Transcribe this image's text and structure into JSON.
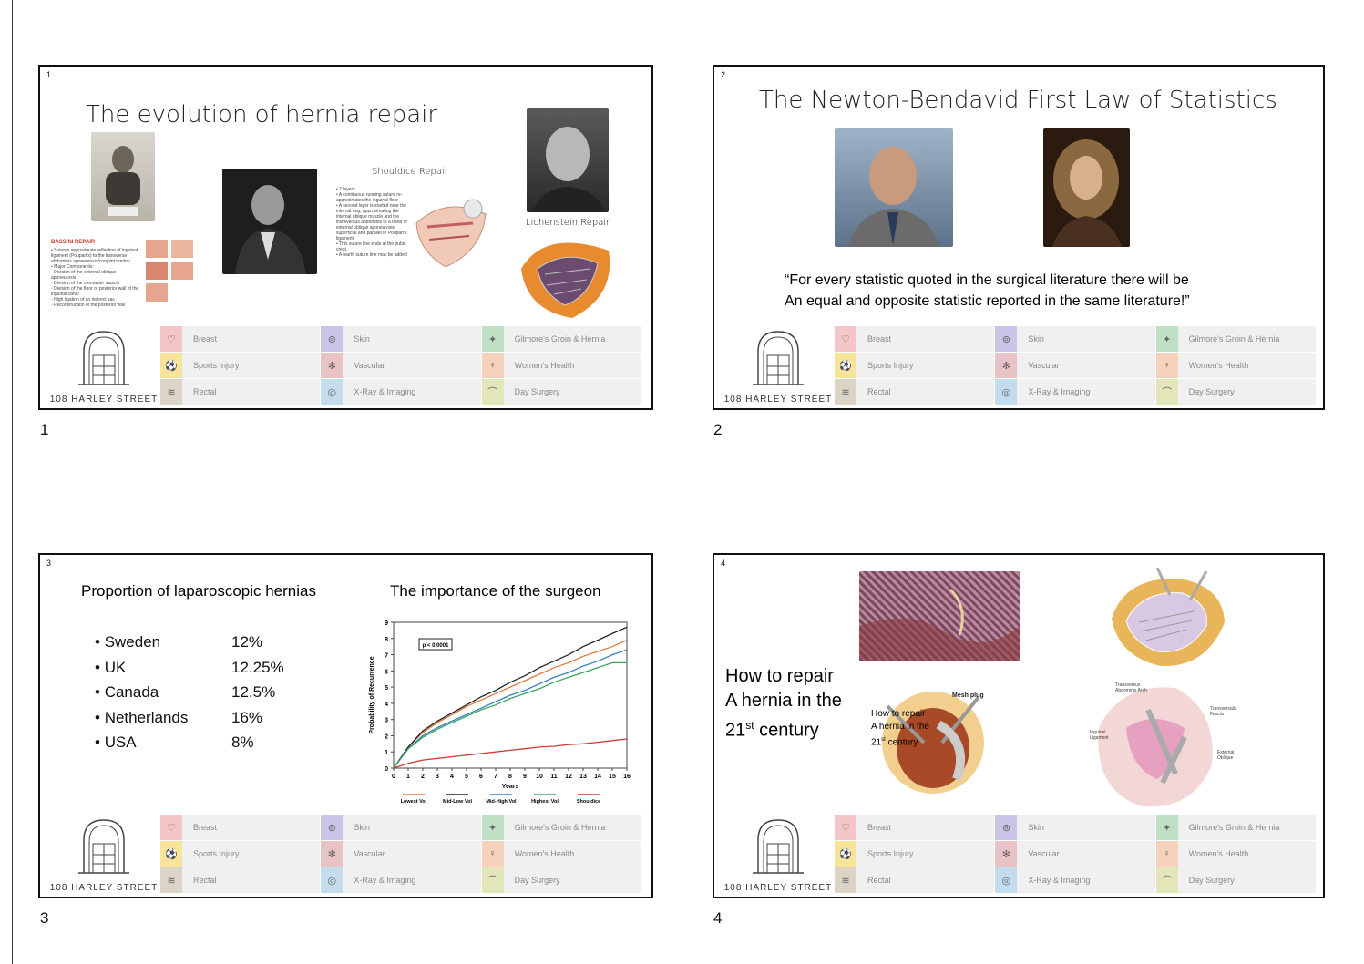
{
  "page_numbers": [
    "1",
    "2",
    "3",
    "4"
  ],
  "footer": {
    "logo_text": "108 HARLEY STREET",
    "cells": [
      {
        "label": "Breast",
        "icon": "ribbon-icon",
        "color": "#f4c6c8",
        "glyph": "♡"
      },
      {
        "label": "Skin",
        "icon": "skin-icon",
        "color": "#c9c5e6",
        "glyph": "⊚"
      },
      {
        "label": "Gilmore's Groin & Hernia",
        "icon": "hernia-icon",
        "color": "#bfe0c4",
        "glyph": "✦"
      },
      {
        "label": "Sports Injury",
        "icon": "sports-icon",
        "color": "#f8e39a",
        "glyph": "⚽"
      },
      {
        "label": "Vascular",
        "icon": "vascular-icon",
        "color": "#e8c3c6",
        "glyph": "✻"
      },
      {
        "label": "Women's Health",
        "icon": "women-icon",
        "color": "#f6d2bd",
        "glyph": "♀"
      },
      {
        "label": "Rectal",
        "icon": "rectal-icon",
        "color": "#dcd4c7",
        "glyph": "≋"
      },
      {
        "label": "X-Ray & Imaging",
        "icon": "xray-icon",
        "color": "#c3dcee",
        "glyph": "◎"
      },
      {
        "label": "Day Surgery",
        "icon": "surgery-icon",
        "color": "#e3e6b8",
        "glyph": "⌒"
      }
    ]
  },
  "slide1": {
    "number": "1",
    "title": "The evolution of hernia repair",
    "shouldice_title": "Shouldice Repair",
    "shouldice_bullets": "• 2 layers\n• A continuous running suture re-approximates the inguinal floor\n• A second layer is started near the internal ring, approximating the internal oblique muscle and the transversus abdominis to a band of external oblique aponeurosis superficial and parallel to Poupart's ligament\n• This suture line ends at the pubic crest.\n• A fourth suture line may be added",
    "lichenstein": "Lichenstein Repair",
    "bassini_title": "BASSINI REPAIR",
    "bassini_text": "• Sutures approximate reflection of inguinal ligament (Poupart's) to the transverse abdominis aponeurosis/conjoint tendon\n• Major Components:\n  ◦ Division of the external oblique aponeurosis\n  ◦ Division of the cremaster muscle\n  ◦ Division of the floor or posterior wall of the inguinal canal\n  ◦ High ligation of an indirect sac\n  ◦ Reconstruction of the posterior wall"
  },
  "slide2": {
    "number": "2",
    "title": "The Newton-Bendavid First Law of Statistics",
    "quote_line1": "“For every statistic quoted in the surgical literature there will be",
    "quote_line2": "An equal and opposite statistic reported in the same literature!”"
  },
  "slide3": {
    "number": "3",
    "left_title": "Proportion of laparoscopic hernias",
    "right_title": "The importance of the surgeon",
    "rows": [
      {
        "country": "Sweden",
        "value": "12%"
      },
      {
        "country": "UK",
        "value": "12.25%"
      },
      {
        "country": "Canada",
        "value": "12.5%"
      },
      {
        "country": "Netherlands",
        "value": "16%"
      },
      {
        "country": "USA",
        "value": "8%"
      }
    ]
  },
  "slide4": {
    "number": "4",
    "heading_line1": "How to repair",
    "heading_line2": "A hernia in the",
    "heading_line3_pre": "21",
    "heading_line3_sup": "st",
    "heading_line3_post": " century",
    "overlay_line1": "How to repair",
    "overlay_line2": "A hernia in the",
    "overlay_line3_pre": "21",
    "overlay_line3_sup": "st",
    "overlay_line3_post": " century",
    "mesh_label": "Mesh plug",
    "anat_labels": [
      "Transversus Abdominis Arch",
      "Transversalis Fascia",
      "Inguinal Ligament",
      "External Oblique"
    ]
  },
  "chart_data": {
    "type": "line",
    "xlabel": "Years",
    "ylabel": "Probability of Recurrence",
    "xlim": [
      0,
      16
    ],
    "ylim": [
      0,
      9
    ],
    "x_ticks": [
      0,
      1,
      2,
      3,
      4,
      5,
      6,
      7,
      8,
      9,
      10,
      11,
      12,
      13,
      14,
      15,
      16
    ],
    "y_ticks": [
      0,
      1,
      2,
      3,
      4,
      5,
      6,
      7,
      8,
      9
    ],
    "annotation": "p < 0.0001",
    "legend_position": "bottom",
    "x": [
      0,
      1,
      2,
      3,
      4,
      5,
      6,
      7,
      8,
      9,
      10,
      11,
      12,
      13,
      14,
      15,
      16
    ],
    "series": [
      {
        "name": "Lowest Vol",
        "color": "#e07a3c",
        "values": [
          0,
          1.3,
          2.2,
          2.8,
          3.3,
          3.8,
          4.2,
          4.6,
          5.0,
          5.4,
          5.8,
          6.2,
          6.5,
          6.9,
          7.2,
          7.5,
          7.9
        ]
      },
      {
        "name": "Mid-Low Vol",
        "color": "#222222",
        "values": [
          0,
          1.3,
          2.3,
          2.9,
          3.4,
          3.9,
          4.4,
          4.8,
          5.3,
          5.7,
          6.2,
          6.6,
          7.0,
          7.5,
          7.9,
          8.3,
          8.7
        ]
      },
      {
        "name": "Mid-High Vol",
        "color": "#3a7fc1",
        "values": [
          0,
          1.2,
          2.0,
          2.5,
          2.9,
          3.3,
          3.7,
          4.1,
          4.5,
          4.8,
          5.2,
          5.6,
          5.9,
          6.3,
          6.6,
          7.0,
          7.3
        ]
      },
      {
        "name": "Highest Vol",
        "color": "#3aa660",
        "values": [
          0,
          1.2,
          1.9,
          2.4,
          2.8,
          3.2,
          3.6,
          3.9,
          4.3,
          4.6,
          4.9,
          5.3,
          5.6,
          5.9,
          6.2,
          6.5,
          6.5
        ]
      },
      {
        "name": "Shouldice",
        "color": "#d03a3a",
        "values": [
          0,
          0.3,
          0.5,
          0.6,
          0.7,
          0.8,
          0.9,
          1.0,
          1.1,
          1.2,
          1.3,
          1.35,
          1.45,
          1.5,
          1.6,
          1.7,
          1.8
        ]
      }
    ]
  }
}
